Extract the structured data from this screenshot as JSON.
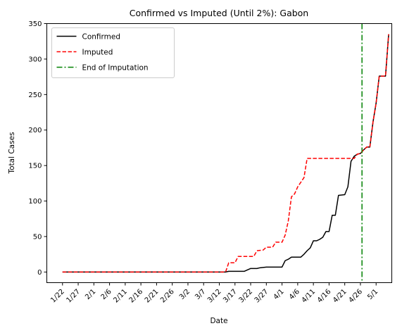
{
  "chart_data": {
    "type": "line",
    "title": "Confirmed vs Imputed (Until 2%): Gabon",
    "xlabel": "Date",
    "ylabel": "Total Cases",
    "ylim": [
      -15,
      350
    ],
    "yticks": [
      0,
      50,
      100,
      150,
      200,
      250,
      300,
      350
    ],
    "x_tick_labels": [
      "1/22",
      "1/27",
      "2/1",
      "2/6",
      "2/11",
      "2/16",
      "2/21",
      "2/26",
      "3/2",
      "3/7",
      "3/12",
      "3/17",
      "3/22",
      "3/27",
      "4/1",
      "4/6",
      "4/11",
      "4/16",
      "4/21",
      "4/26",
      "5/1"
    ],
    "x_tick_day_index": [
      0,
      5,
      10,
      15,
      20,
      25,
      30,
      35,
      40,
      45,
      50,
      55,
      60,
      65,
      70,
      75,
      80,
      85,
      90,
      95,
      100
    ],
    "xlim_day_index": [
      -5,
      105
    ],
    "legend_position": "top-left",
    "legend_entries": [
      "Confirmed",
      "Imputed",
      "End of Imputation"
    ],
    "series": [
      {
        "name": "Confirmed",
        "color": "#000000",
        "style": "solid",
        "points": [
          [
            0,
            0
          ],
          [
            52,
            0
          ],
          [
            53,
            1
          ],
          [
            58,
            1
          ],
          [
            59,
            3
          ],
          [
            60,
            5
          ],
          [
            62,
            5
          ],
          [
            63,
            6
          ],
          [
            65,
            7
          ],
          [
            67,
            7
          ],
          [
            70,
            7
          ],
          [
            71,
            16
          ],
          [
            72,
            18
          ],
          [
            73,
            21
          ],
          [
            76,
            21
          ],
          [
            77,
            25
          ],
          [
            78,
            30
          ],
          [
            79,
            34
          ],
          [
            80,
            44
          ],
          [
            81,
            44
          ],
          [
            82,
            46
          ],
          [
            83,
            49
          ],
          [
            84,
            57
          ],
          [
            85,
            57
          ],
          [
            86,
            80
          ],
          [
            87,
            80
          ],
          [
            88,
            108
          ],
          [
            90,
            109
          ],
          [
            91,
            120
          ],
          [
            92,
            156
          ],
          [
            93,
            163
          ],
          [
            94,
            166
          ],
          [
            95,
            167
          ],
          [
            96,
            172
          ],
          [
            97,
            176
          ],
          [
            98,
            176
          ],
          [
            99,
            211
          ],
          [
            100,
            238
          ],
          [
            101,
            276
          ],
          [
            103,
            276
          ],
          [
            104,
            335
          ]
        ]
      },
      {
        "name": "Imputed",
        "color": "#ff0000",
        "style": "dashed",
        "points": [
          [
            0,
            0
          ],
          [
            52,
            0
          ],
          [
            53,
            13
          ],
          [
            55,
            13
          ],
          [
            56,
            22
          ],
          [
            59,
            22
          ],
          [
            61,
            22
          ],
          [
            62,
            30
          ],
          [
            64,
            31
          ],
          [
            65,
            35
          ],
          [
            67,
            35
          ],
          [
            68,
            42
          ],
          [
            70,
            42
          ],
          [
            71,
            52
          ],
          [
            72,
            72
          ],
          [
            73,
            106
          ],
          [
            74,
            110
          ],
          [
            75,
            120
          ],
          [
            77,
            133
          ],
          [
            78,
            160
          ],
          [
            93,
            160
          ],
          [
            94,
            166
          ],
          [
            95,
            167
          ],
          [
            96,
            172
          ],
          [
            97,
            176
          ],
          [
            98,
            176
          ],
          [
            99,
            211
          ],
          [
            100,
            238
          ],
          [
            101,
            276
          ],
          [
            103,
            276
          ],
          [
            104,
            335
          ]
        ]
      }
    ],
    "vertical_lines": [
      {
        "name": "End of Imputation",
        "x_day_index": 95.5,
        "color": "#008000",
        "style": "dashdot"
      }
    ]
  }
}
